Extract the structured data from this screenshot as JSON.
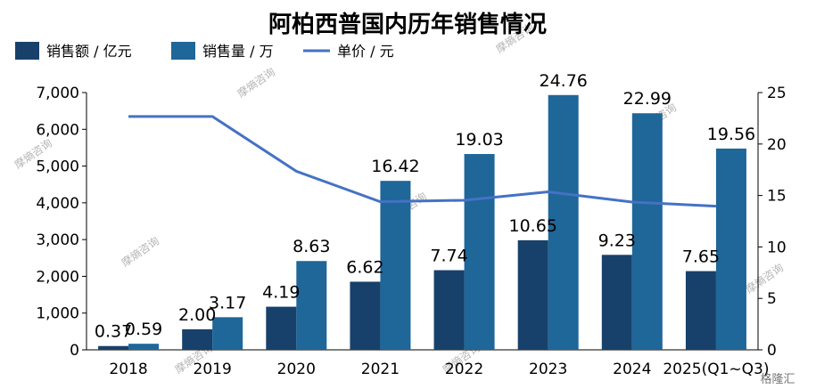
{
  "chart_data": {
    "type": "bar",
    "title": "阿柏西普国内历年销售情况",
    "categories": [
      "2018",
      "2019",
      "2020",
      "2021",
      "2022",
      "2023",
      "2024",
      "2025(Q1~Q3)"
    ],
    "series": [
      {
        "name": "销售额 / 亿元",
        "kind": "bar",
        "axis": "right",
        "color": "#17416a",
        "values": [
          0.37,
          2.0,
          4.19,
          6.62,
          7.74,
          10.65,
          9.23,
          7.65
        ],
        "labels": [
          "0.37",
          "2.00",
          "4.19",
          "6.62",
          "7.74",
          "10.65",
          "9.23",
          "7.65"
        ]
      },
      {
        "name": "销售量 / 万",
        "kind": "bar",
        "axis": "left",
        "color": "#1f6699",
        "values": [
          0.59,
          3.17,
          8.63,
          16.42,
          19.03,
          24.76,
          22.99,
          19.56
        ],
        "labels": [
          "0.59",
          "3.17",
          "8.63",
          "16.42",
          "19.03",
          "24.76",
          "22.99",
          "19.56"
        ]
      },
      {
        "name": "单价 / 元",
        "kind": "line",
        "axis": "left",
        "color": "#4472c4",
        "values": [
          6350,
          6350,
          4860,
          4030,
          4070,
          4300,
          4020,
          3910
        ]
      }
    ],
    "y_left": {
      "min": 0,
      "max": 7000,
      "step": 1000
    },
    "y_right": {
      "min": 0,
      "max": 25,
      "step": 5
    },
    "legend": "top-left",
    "grid": false
  },
  "watermark": {
    "text": "摩熵咨询"
  },
  "corner_logo": {
    "text": "格隆汇"
  }
}
